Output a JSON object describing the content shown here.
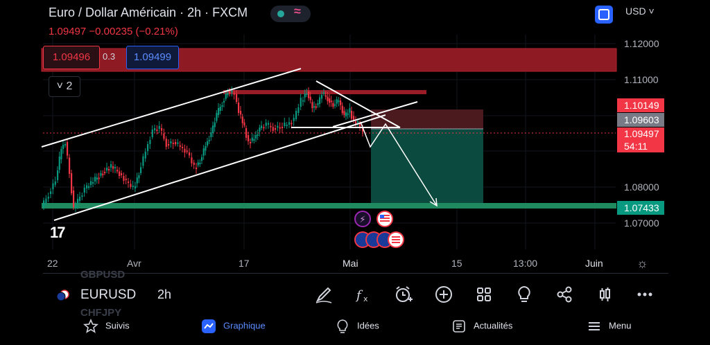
{
  "header": {
    "title": "Euro / Dollar Américain · 2h · FXCM",
    "price_line": "1.09497  −0.00235 (−0.21%)",
    "currency": "USD ˅"
  },
  "trade": {
    "sell": "1.09496",
    "spread": "0.3",
    "buy": "1.09499"
  },
  "indicators": {
    "count_label": "2"
  },
  "y_axis": {
    "ticks": [
      "1.12000",
      "1.11000",
      "1.08000",
      "1.07000"
    ],
    "labels": [
      {
        "text": "1.10149",
        "color": "#f23645"
      },
      {
        "text": "1.09603",
        "color": "#787b86"
      },
      {
        "text": "1.09497",
        "color": "#f23645"
      },
      {
        "text": "54:11",
        "color": "#f23645"
      },
      {
        "text": "1.07433",
        "color": "#089981"
      }
    ]
  },
  "x_axis": {
    "ticks": [
      "22",
      "Avr",
      "17",
      "Mai",
      "15",
      "13:00",
      "Juin"
    ]
  },
  "chart": {
    "logo": "17",
    "colors": {
      "up": "#089981",
      "down": "#f23645",
      "resistance": "#b2222d",
      "support": "#1f8a5f",
      "target": "#0e5346"
    }
  },
  "toolbar": {
    "symbol": "EURUSD",
    "interval": "2h",
    "ghost_prev": "GBPUSD",
    "ghost_next": "CHFJPY",
    "tools": [
      "pencil-icon",
      "fx-icon",
      "alarm-icon",
      "plus-circle-icon",
      "grid-icon",
      "idea-bulb-icon",
      "share-icon",
      "candles-icon",
      "more-icon"
    ]
  },
  "nav": {
    "items": [
      {
        "label": "Suivis",
        "icon": "star-icon",
        "active": false
      },
      {
        "label": "Graphique",
        "icon": "chart-icon",
        "active": true
      },
      {
        "label": "Idées",
        "icon": "bulb-icon",
        "active": false
      },
      {
        "label": "Actualités",
        "icon": "news-icon",
        "active": false
      },
      {
        "label": "Menu",
        "icon": "menu-icon",
        "active": false
      }
    ]
  }
}
